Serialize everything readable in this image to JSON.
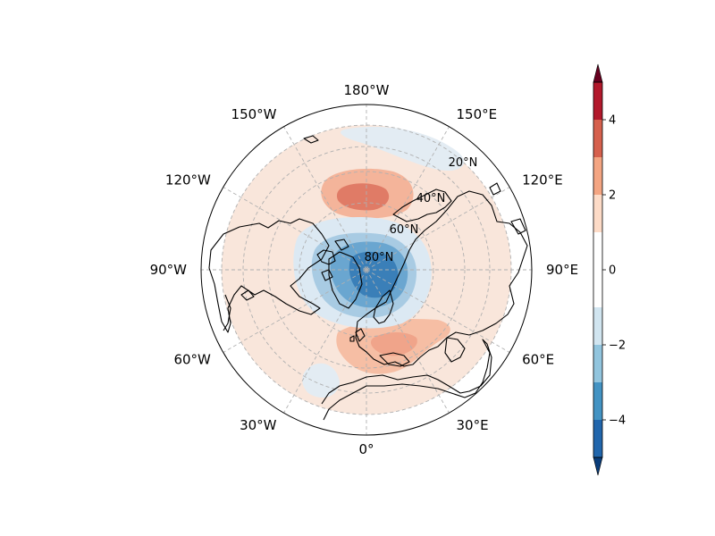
{
  "map": {
    "projection": "north-polar-stereographic",
    "center_lon": 0,
    "longitude_labels": [
      {
        "lon": 180,
        "text": "180°W"
      },
      {
        "lon": -150,
        "text": "150°W"
      },
      {
        "lon": -120,
        "text": "120°W"
      },
      {
        "lon": -90,
        "text": "90°W"
      },
      {
        "lon": -60,
        "text": "60°W"
      },
      {
        "lon": -30,
        "text": "30°W"
      },
      {
        "lon": 0,
        "text": "0°"
      },
      {
        "lon": 30,
        "text": "30°E"
      },
      {
        "lon": 60,
        "text": "60°E"
      },
      {
        "lon": 90,
        "text": "90°E"
      },
      {
        "lon": 120,
        "text": "120°E"
      },
      {
        "lon": 150,
        "text": "150°E"
      }
    ],
    "latitude_labels": [
      {
        "lat": 20,
        "text": "20°N"
      },
      {
        "lat": 40,
        "text": "40°N"
      },
      {
        "lat": 60,
        "text": "60°N"
      },
      {
        "lat": 80,
        "text": "80°N"
      }
    ],
    "anomaly_regions": [
      {
        "name": "north-pacific-positive",
        "level": 1
      },
      {
        "name": "north-pacific-positive-core",
        "level": 2
      },
      {
        "name": "europe-positive",
        "level": 1
      },
      {
        "name": "europe-positive-core",
        "level": 2
      },
      {
        "name": "arctic-negative",
        "level": -1
      },
      {
        "name": "arctic-negative-2",
        "level": -2
      },
      {
        "name": "arctic-negative-3",
        "level": -3
      },
      {
        "name": "arctic-negative-4",
        "level": -4
      },
      {
        "name": "bering-negative",
        "level": -0.5
      },
      {
        "name": "atlantic-negative",
        "level": -0.5
      }
    ]
  },
  "colorbar": {
    "ticks": [
      {
        "value": 4,
        "label": "4"
      },
      {
        "value": 2,
        "label": "2"
      },
      {
        "value": 0,
        "label": "0"
      },
      {
        "value": -2,
        "label": "−2"
      },
      {
        "value": -4,
        "label": "−4"
      }
    ],
    "levels": [
      -5,
      -4,
      -3,
      -2,
      -1,
      1,
      2,
      3,
      4,
      5
    ],
    "colors": [
      "#0a3d7a",
      "#2166ac",
      "#4393c3",
      "#92c5de",
      "#d1e5f0",
      "#ffffff",
      "#fddbc7",
      "#f4a582",
      "#d6604d",
      "#b2182b",
      "#67001f"
    ],
    "extend": "both"
  }
}
